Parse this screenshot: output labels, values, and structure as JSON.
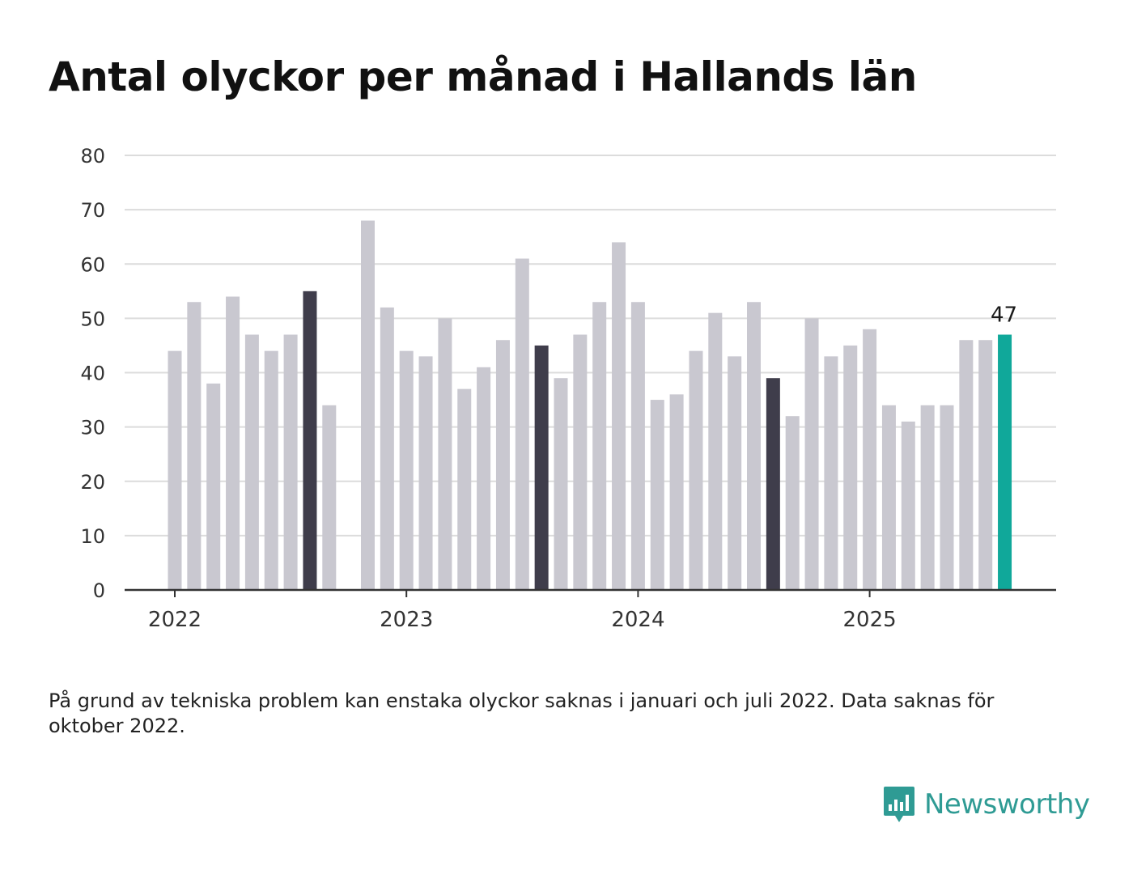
{
  "title": "Antal olyckor per månad i Hallands län",
  "note": "På grund av tekniska problem kan enstaka olyckor saknas i januari och juli 2022. Data saknas för oktober 2022.",
  "brand": {
    "name": "Newsworthy",
    "icon": "newsworthy-logo-icon",
    "color": "#2f9b94"
  },
  "chart_data": {
    "type": "bar",
    "ylim": [
      0,
      80
    ],
    "yticks": [
      0,
      10,
      20,
      30,
      40,
      50,
      60,
      70,
      80
    ],
    "grid": true,
    "x_tick_labels": [
      {
        "label": "2022",
        "index": 0
      },
      {
        "label": "2023",
        "index": 12
      },
      {
        "label": "2024",
        "index": 24
      },
      {
        "label": "2025",
        "index": 36
      }
    ],
    "categories": [
      "2022-01",
      "2022-02",
      "2022-03",
      "2022-04",
      "2022-05",
      "2022-06",
      "2022-07",
      "2022-08",
      "2022-09",
      "2022-10",
      "2022-11",
      "2022-12",
      "2023-01",
      "2023-02",
      "2023-03",
      "2023-04",
      "2023-05",
      "2023-06",
      "2023-07",
      "2023-08",
      "2023-09",
      "2023-10",
      "2023-11",
      "2023-12",
      "2024-01",
      "2024-02",
      "2024-03",
      "2024-04",
      "2024-05",
      "2024-06",
      "2024-07",
      "2024-08",
      "2024-09",
      "2024-10",
      "2024-11",
      "2024-12",
      "2025-01",
      "2025-02",
      "2025-03",
      "2025-04",
      "2025-05",
      "2025-06",
      "2025-07",
      "2025-08"
    ],
    "values": [
      44,
      53,
      38,
      54,
      47,
      44,
      47,
      55,
      34,
      null,
      68,
      52,
      44,
      43,
      50,
      37,
      41,
      46,
      61,
      45,
      39,
      47,
      53,
      64,
      53,
      35,
      36,
      44,
      51,
      43,
      53,
      39,
      32,
      50,
      43,
      45,
      48,
      34,
      31,
      34,
      34,
      46,
      46,
      47
    ],
    "highlight_dark": [
      "2022-08",
      "2023-08",
      "2024-08"
    ],
    "highlight_current": "2025-08",
    "data_labels": [
      {
        "category": "2025-08",
        "text": "47"
      }
    ],
    "colors": {
      "default": "#c9c8d0",
      "dark": "#3f3d4b",
      "current": "#10a89a",
      "grid": "#dcdcdc",
      "axis": "#333333"
    }
  }
}
